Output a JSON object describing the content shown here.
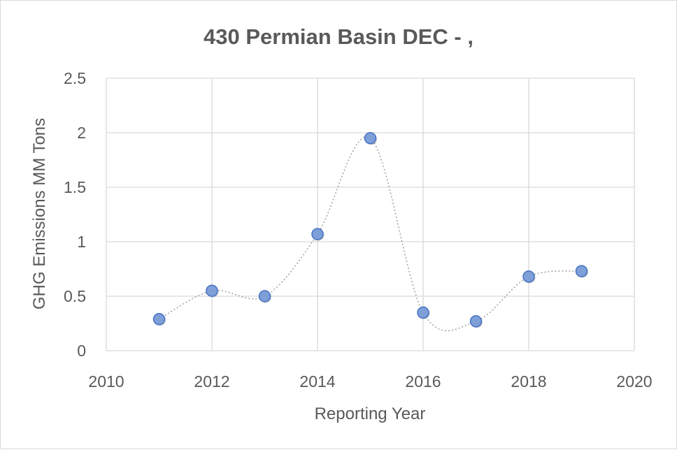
{
  "chart_data": {
    "type": "scatter",
    "title": "430 Permian Basin DEC - ,",
    "xlabel": "Reporting Year",
    "ylabel": "GHG Emissions MM Tons",
    "xlim": [
      2010,
      2020
    ],
    "ylim": [
      0,
      2.5
    ],
    "x_ticks": [
      "2010",
      "2012",
      "2014",
      "2016",
      "2018",
      "2020"
    ],
    "y_ticks": [
      "0",
      "0.5",
      "1",
      "1.5",
      "2",
      "2.5"
    ],
    "grid": true,
    "line_style": "smoothed dotted trendline",
    "colors": {
      "marker_fill": "#7f9fd8",
      "marker_stroke": "#4472c4",
      "line": "#a6a6a6",
      "grid": "#d9d9d9",
      "text": "#595959"
    },
    "series": [
      {
        "x": [
          2011,
          2012,
          2013,
          2014,
          2015,
          2016,
          2017,
          2018,
          2019
        ],
        "y": [
          0.29,
          0.55,
          0.5,
          1.07,
          1.95,
          0.35,
          0.27,
          0.68,
          0.73
        ]
      }
    ]
  }
}
